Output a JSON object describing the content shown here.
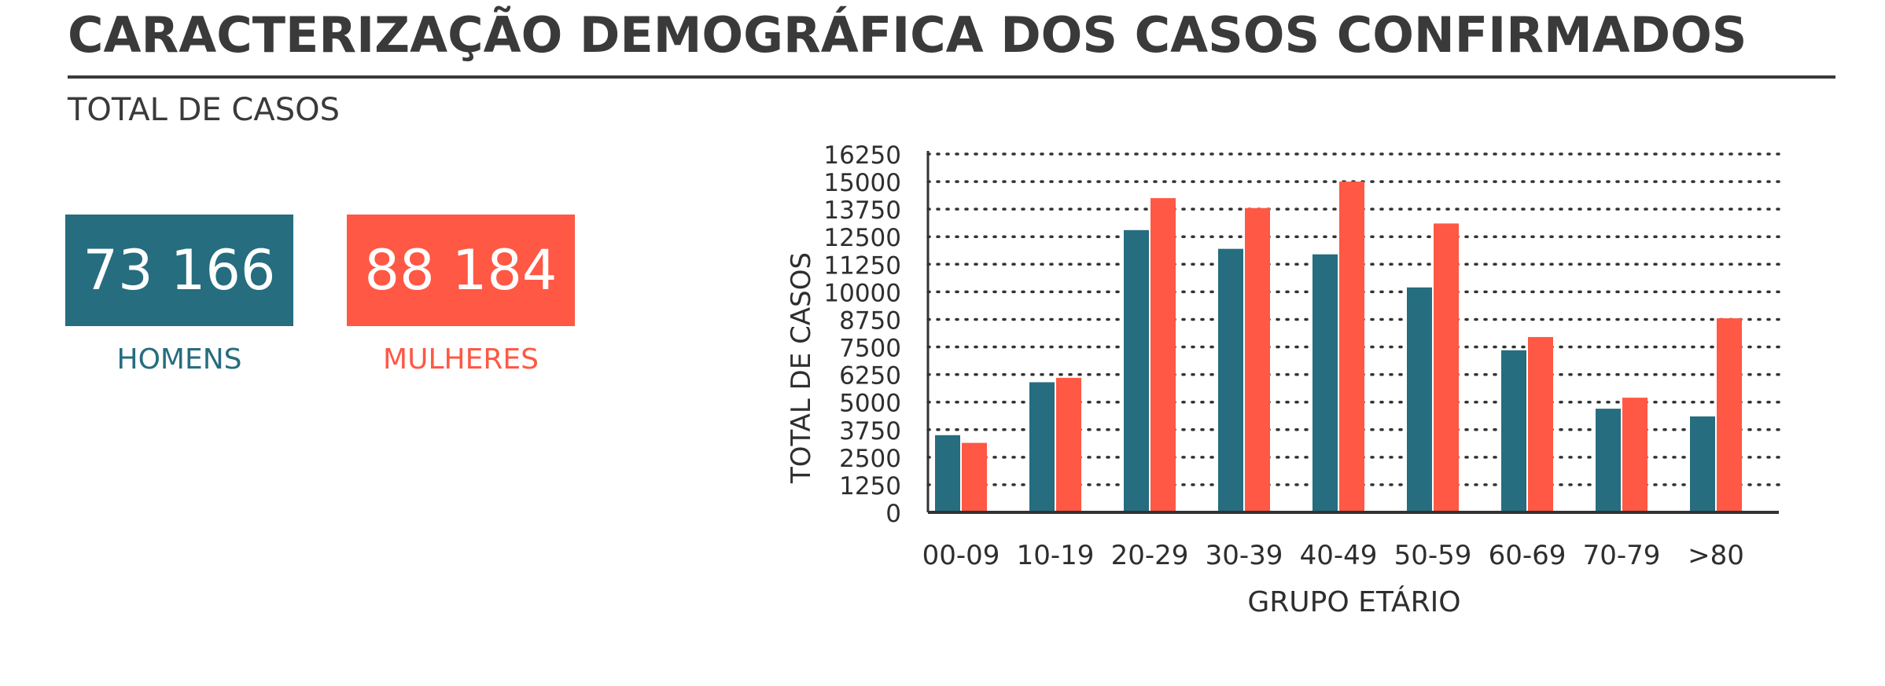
{
  "title": "CARACTERIZAÇÃO DEMOGRÁFICA DOS CASOS CONFIRMADOS",
  "subtitle": "TOTAL DE CASOS",
  "kpis": {
    "men": {
      "value": "73 166",
      "label": "HOMENS"
    },
    "women": {
      "value": "88 184",
      "label": "MULHERES"
    }
  },
  "colors": {
    "men": "#256d7f",
    "women": "#ff5844",
    "text": "#3a3a3a"
  },
  "chart_data": {
    "type": "bar",
    "categories": [
      "00-09",
      "10-19",
      "20-29",
      "30-39",
      "40-49",
      "50-59",
      "60-69",
      "70-79",
      ">80"
    ],
    "series": [
      {
        "values": [
          3500,
          5900,
          12800,
          11950,
          11700,
          10200,
          7350,
          4700,
          4350
        ]
      },
      {
        "values": [
          3150,
          6100,
          14250,
          13800,
          15000,
          13100,
          7950,
          5200,
          8800
        ]
      }
    ],
    "xlabel": "GRUPO ETÁRIO",
    "ylabel": "TOTAL DE CASOS",
    "ylim": [
      0,
      16250
    ],
    "yticks": [
      0,
      1250,
      2500,
      3750,
      5000,
      6250,
      7500,
      8750,
      10000,
      11250,
      12500,
      13750,
      15000,
      16250
    ],
    "grid": true
  }
}
